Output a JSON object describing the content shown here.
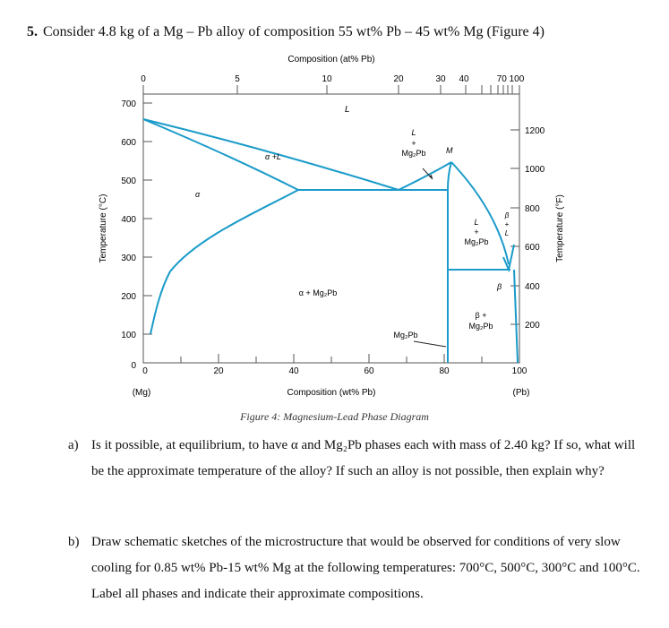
{
  "question": {
    "number": "5.",
    "text": "Consider 4.8 kg of a Mg – Pb alloy of composition 55 wt% Pb – 45 wt% Mg (Figure 4)"
  },
  "figure": {
    "caption": "Figure 4: Magnesium-Lead Phase Diagram",
    "top_axis_title": "Composition (at% Pb)",
    "top_ticks": [
      "0",
      "5",
      "10",
      "20",
      "30",
      "40",
      "70 100"
    ],
    "bottom_axis_title": "Composition (wt% Pb)",
    "bottom_ticks": [
      "0",
      "20",
      "40",
      "60",
      "80",
      "100"
    ],
    "bottom_left_label": "(Mg)",
    "bottom_right_label": "(Pb)",
    "left_axis_title": "Temperature (°C)",
    "left_ticks": [
      "700",
      "600",
      "500",
      "400",
      "300",
      "200",
      "100",
      "0"
    ],
    "right_axis_title": "Temperature (°F)",
    "right_ticks": [
      "1200",
      "1000",
      "800",
      "600",
      "400",
      "200"
    ],
    "region_labels": {
      "L": "L",
      "alpha_plus_L": "α +L",
      "alpha": "α",
      "L_plus_mg2pb_L": "L",
      "L_plus_mg2pb_plus": "+",
      "L_plus_mg2pb_compound": "Mg₂Pb",
      "M": "M",
      "right_L": "L",
      "right_plus": "+",
      "right_compound": "Mg₂Pb",
      "beta_L_beta": "β",
      "beta_L_plus": "+",
      "beta_L_L": "L",
      "alpha_plus_mg2pb": "α + Mg₂Pb",
      "beta": "β",
      "beta_plus_mg2pb_beta": "β +",
      "beta_plus_mg2pb_compound": "Mg₂Pb",
      "mg2pb_bottom": "Mg₂Pb"
    },
    "line_color": "#1a9bc9"
  },
  "parts": {
    "a": {
      "label": "a)",
      "text": "Is it possible, at equilibrium, to have α and Mg₂Pb phases each with mass of 2.40 kg? If so, what will be the approximate temperature of the alloy? If such an alloy is not possible, then explain why?"
    },
    "b": {
      "label": "b)",
      "text": "Draw schematic sketches of the microstructure that would be observed for conditions of very slow cooling for 0.85 wt% Pb-15 wt% Mg at the following temperatures: 700°C, 500°C, 300°C and 100°C. Label all phases and indicate their approximate compositions."
    }
  }
}
